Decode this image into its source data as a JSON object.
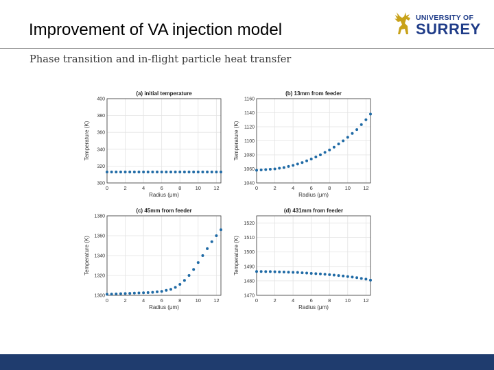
{
  "header": {
    "title": "Improvement of VA injection model",
    "subtitle": "Phase transition and in-flight particle heat transfer"
  },
  "logo": {
    "line1": "UNIVERSITY OF",
    "line2": "SURREY"
  },
  "colors": {
    "marker": "#1f6aa5",
    "footer": "#1f3c6e",
    "brand": "#1f3c88",
    "stag": "#c8a21a"
  },
  "chart_data": [
    {
      "type": "scatter",
      "title": "(a) initial temperature",
      "xlabel": "Radius (μm)",
      "ylabel": "Temperature (K)",
      "xlim": [
        0,
        12.5
      ],
      "ylim": [
        300,
        400
      ],
      "xticks": [
        0,
        2,
        4,
        6,
        8,
        10,
        12
      ],
      "yticks": [
        300,
        320,
        340,
        360,
        380,
        400
      ],
      "x": [
        0,
        0.5,
        1,
        1.5,
        2,
        2.5,
        3,
        3.5,
        4,
        4.5,
        5,
        5.5,
        6,
        6.5,
        7,
        7.5,
        8,
        8.5,
        9,
        9.5,
        10,
        10.5,
        11,
        11.5,
        12,
        12.5
      ],
      "y": [
        313,
        313,
        313,
        313,
        313,
        313,
        313,
        313,
        313,
        313,
        313,
        313,
        313,
        313,
        313,
        313,
        313,
        313,
        313,
        313,
        313,
        313,
        313,
        313,
        313,
        313
      ]
    },
    {
      "type": "scatter",
      "title": "(b) 13mm from feeder",
      "xlabel": "Radius (μm)",
      "ylabel": "Temperature (K)",
      "xlim": [
        0,
        12.5
      ],
      "ylim": [
        1040,
        1160
      ],
      "xticks": [
        0,
        2,
        4,
        6,
        8,
        10,
        12
      ],
      "yticks": [
        1040,
        1060,
        1080,
        1100,
        1120,
        1140,
        1160
      ],
      "x": [
        0,
        0.5,
        1,
        1.5,
        2,
        2.5,
        3,
        3.5,
        4,
        4.5,
        5,
        5.5,
        6,
        6.5,
        7,
        7.5,
        8,
        8.5,
        9,
        9.5,
        10,
        10.5,
        11,
        11.5,
        12,
        12.5
      ],
      "y": [
        1058,
        1058.5,
        1059,
        1059.5,
        1060,
        1061,
        1062,
        1063.5,
        1065,
        1067,
        1069,
        1071.5,
        1074,
        1077,
        1080,
        1083.5,
        1087,
        1091,
        1095.5,
        1100,
        1105,
        1110.5,
        1116,
        1123,
        1130,
        1138
      ]
    },
    {
      "type": "scatter",
      "title": "(c) 45mm from feeder",
      "xlabel": "Radius (μm)",
      "ylabel": "Temperature (K)",
      "xlim": [
        0,
        12.5
      ],
      "ylim": [
        1300,
        1380
      ],
      "xticks": [
        0,
        2,
        4,
        6,
        8,
        10,
        12
      ],
      "yticks": [
        1300,
        1320,
        1340,
        1360,
        1380
      ],
      "x": [
        0,
        0.5,
        1,
        1.5,
        2,
        2.5,
        3,
        3.5,
        4,
        4.5,
        5,
        5.5,
        6,
        6.5,
        7,
        7.5,
        8,
        8.5,
        9,
        9.5,
        10,
        10.5,
        11,
        11.5,
        12,
        12.5
      ],
      "y": [
        1301,
        1301.2,
        1301.4,
        1301.6,
        1301.8,
        1302,
        1302.2,
        1302.4,
        1302.6,
        1302.8,
        1303,
        1303.5,
        1304,
        1305,
        1306,
        1308,
        1311,
        1315,
        1320,
        1326,
        1333,
        1340,
        1347,
        1354,
        1360,
        1366
      ]
    },
    {
      "type": "scatter",
      "title": "(d) 431mm from feeder",
      "xlabel": "Radius (μm)",
      "ylabel": "Temperature (K)",
      "xlim": [
        0,
        12.5
      ],
      "ylim": [
        1470,
        1525
      ],
      "xticks": [
        0,
        2,
        4,
        6,
        8,
        10,
        12
      ],
      "yticks": [
        1470,
        1480,
        1490,
        1500,
        1510,
        1520
      ],
      "x": [
        0,
        0.5,
        1,
        1.5,
        2,
        2.5,
        3,
        3.5,
        4,
        4.5,
        5,
        5.5,
        6,
        6.5,
        7,
        7.5,
        8,
        8.5,
        9,
        9.5,
        10,
        10.5,
        11,
        11.5,
        12,
        12.5
      ],
      "y": [
        1486.5,
        1486.5,
        1486.4,
        1486.4,
        1486.3,
        1486.2,
        1486.1,
        1486,
        1485.9,
        1485.8,
        1485.6,
        1485.4,
        1485.2,
        1485,
        1484.8,
        1484.6,
        1484.3,
        1484,
        1483.7,
        1483.4,
        1483,
        1482.6,
        1482.2,
        1481.7,
        1481.2,
        1480.5
      ]
    }
  ]
}
